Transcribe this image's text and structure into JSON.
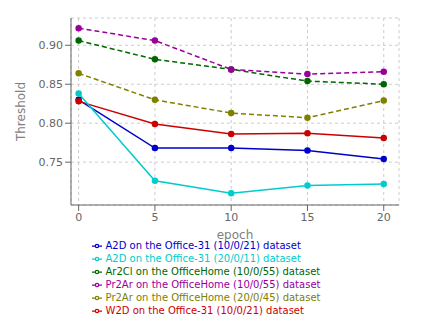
{
  "chart_data": {
    "type": "line",
    "xlabel": "epoch",
    "ylabel": "Threshold",
    "x": [
      0,
      5,
      10,
      15,
      20
    ],
    "series": [
      {
        "name": "A2D on the Office-31 (10/0/21) dataset",
        "color": "#0000cc",
        "line_style": "solid",
        "marker": "circle",
        "values": [
          0.83,
          0.768,
          0.768,
          0.765,
          0.754
        ]
      },
      {
        "name": "W2D on the Office-31 (10/0/21) dataset",
        "color": "#cc0000",
        "line_style": "solid",
        "marker": "circle",
        "values": [
          0.828,
          0.799,
          0.786,
          0.787,
          0.781
        ]
      },
      {
        "name": "A2D on the Office-31 (20/0/11) dataset",
        "color": "#00cccc",
        "line_style": "solid",
        "marker": "circle",
        "values": [
          0.838,
          0.726,
          0.71,
          0.72,
          0.722
        ]
      },
      {
        "name": "Ar2Cl on the OfficeHome (10/0/55) dataset",
        "color": "#006600",
        "line_style": "dashed",
        "marker": "circle",
        "values": [
          0.906,
          0.882,
          0.869,
          0.854,
          0.85
        ]
      },
      {
        "name": "Pr2Ar on the OfficeHome (10/0/55) dataset",
        "color": "#990099",
        "line_style": "dashed",
        "marker": "circle",
        "values": [
          0.922,
          0.906,
          0.869,
          0.863,
          0.866
        ]
      },
      {
        "name": "Pr2Ar on the OfficeHome (20/0/45) dataset",
        "color": "#808000",
        "line_style": "dashed",
        "marker": "circle",
        "values": [
          0.864,
          0.83,
          0.813,
          0.807,
          0.829
        ]
      }
    ],
    "xlim": [
      -0.5,
      21
    ],
    "ylim": [
      0.695,
      0.935
    ],
    "xticks": [
      0,
      5,
      10,
      15,
      20
    ],
    "yticks": [
      0.75,
      {
        "value": 0.8,
        "label": "0.80"
      },
      0.85,
      {
        "value": 0.9,
        "label": "0.90"
      }
    ],
    "grid": true,
    "legend": "bottom"
  }
}
